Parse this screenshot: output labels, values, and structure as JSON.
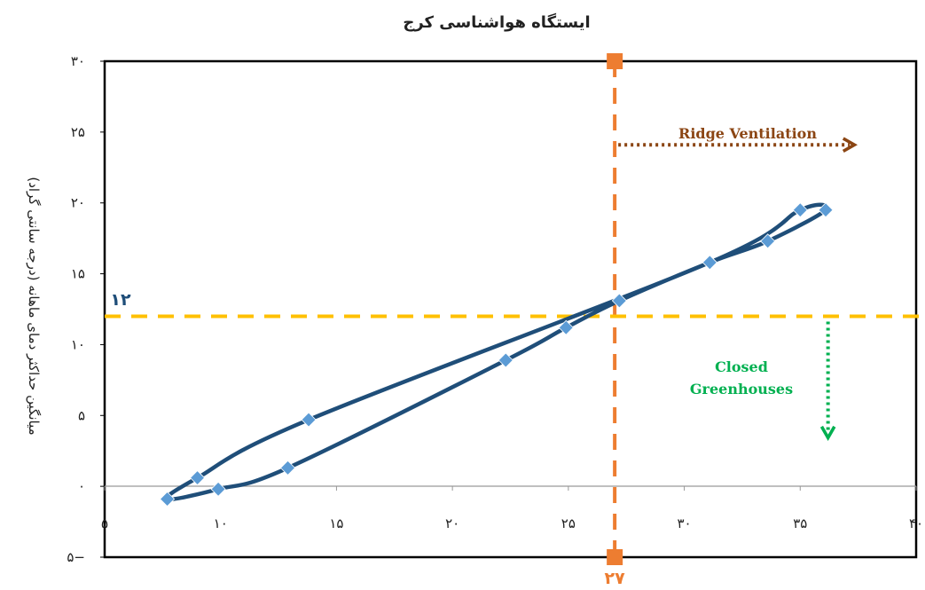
{
  "chart_data": {
    "type": "scatter",
    "title": "ایستگاه هواشناسی کرج",
    "xlabel": "",
    "ylabel": "میانگین حداکثر دمای ماهانه (درجه سانتی گراد)",
    "xlim": [
      5,
      40
    ],
    "ylim": [
      -5,
      30
    ],
    "x_ticks": [
      5,
      10,
      15,
      20,
      25,
      30,
      35,
      40
    ],
    "x_tick_labels": [
      "۵",
      "۱۰",
      "۱۵",
      "۲۰",
      "۲۵",
      "۳۰",
      "۳۵",
      "۴۰"
    ],
    "y_ticks": [
      -5,
      0,
      5,
      10,
      15,
      20,
      25,
      30
    ],
    "y_tick_labels": [
      "۵−",
      "۰",
      "۵",
      "۱۰",
      "۱۵",
      "۲۰",
      "۲۵",
      "۳۰"
    ],
    "grid": false,
    "series": [
      {
        "color": "#5b9bd5",
        "line_color": "#1f4e79",
        "closed_loop": true,
        "points": [
          {
            "x": 7.7,
            "y": -0.9
          },
          {
            "x": 9.9,
            "y": -0.2
          },
          {
            "x": 12.9,
            "y": 1.3
          },
          {
            "x": 22.3,
            "y": 8.9
          },
          {
            "x": 24.9,
            "y": 11.2
          },
          {
            "x": 27.2,
            "y": 13.1
          },
          {
            "x": 31.1,
            "y": 15.8
          },
          {
            "x": 33.6,
            "y": 17.3
          },
          {
            "x": 36.1,
            "y": 19.5
          },
          {
            "x": 35.0,
            "y": 19.5
          },
          {
            "x": 31.1,
            "y": 15.8
          },
          {
            "x": 13.8,
            "y": 4.7
          },
          {
            "x": 9.0,
            "y": 0.6
          }
        ]
      }
    ],
    "reference_lines": [
      {
        "orientation": "vertical",
        "value": 27,
        "label": "۲۷",
        "color": "#ed7d31"
      },
      {
        "orientation": "horizontal",
        "value": 12,
        "label": "۱۲",
        "color": "#ffc000"
      }
    ],
    "annotations": [
      {
        "text": "Ridge Ventilation",
        "color": "#8b4513"
      },
      {
        "text": [
          "Closed",
          "Greenhouses"
        ],
        "color": "#00b050"
      }
    ]
  }
}
